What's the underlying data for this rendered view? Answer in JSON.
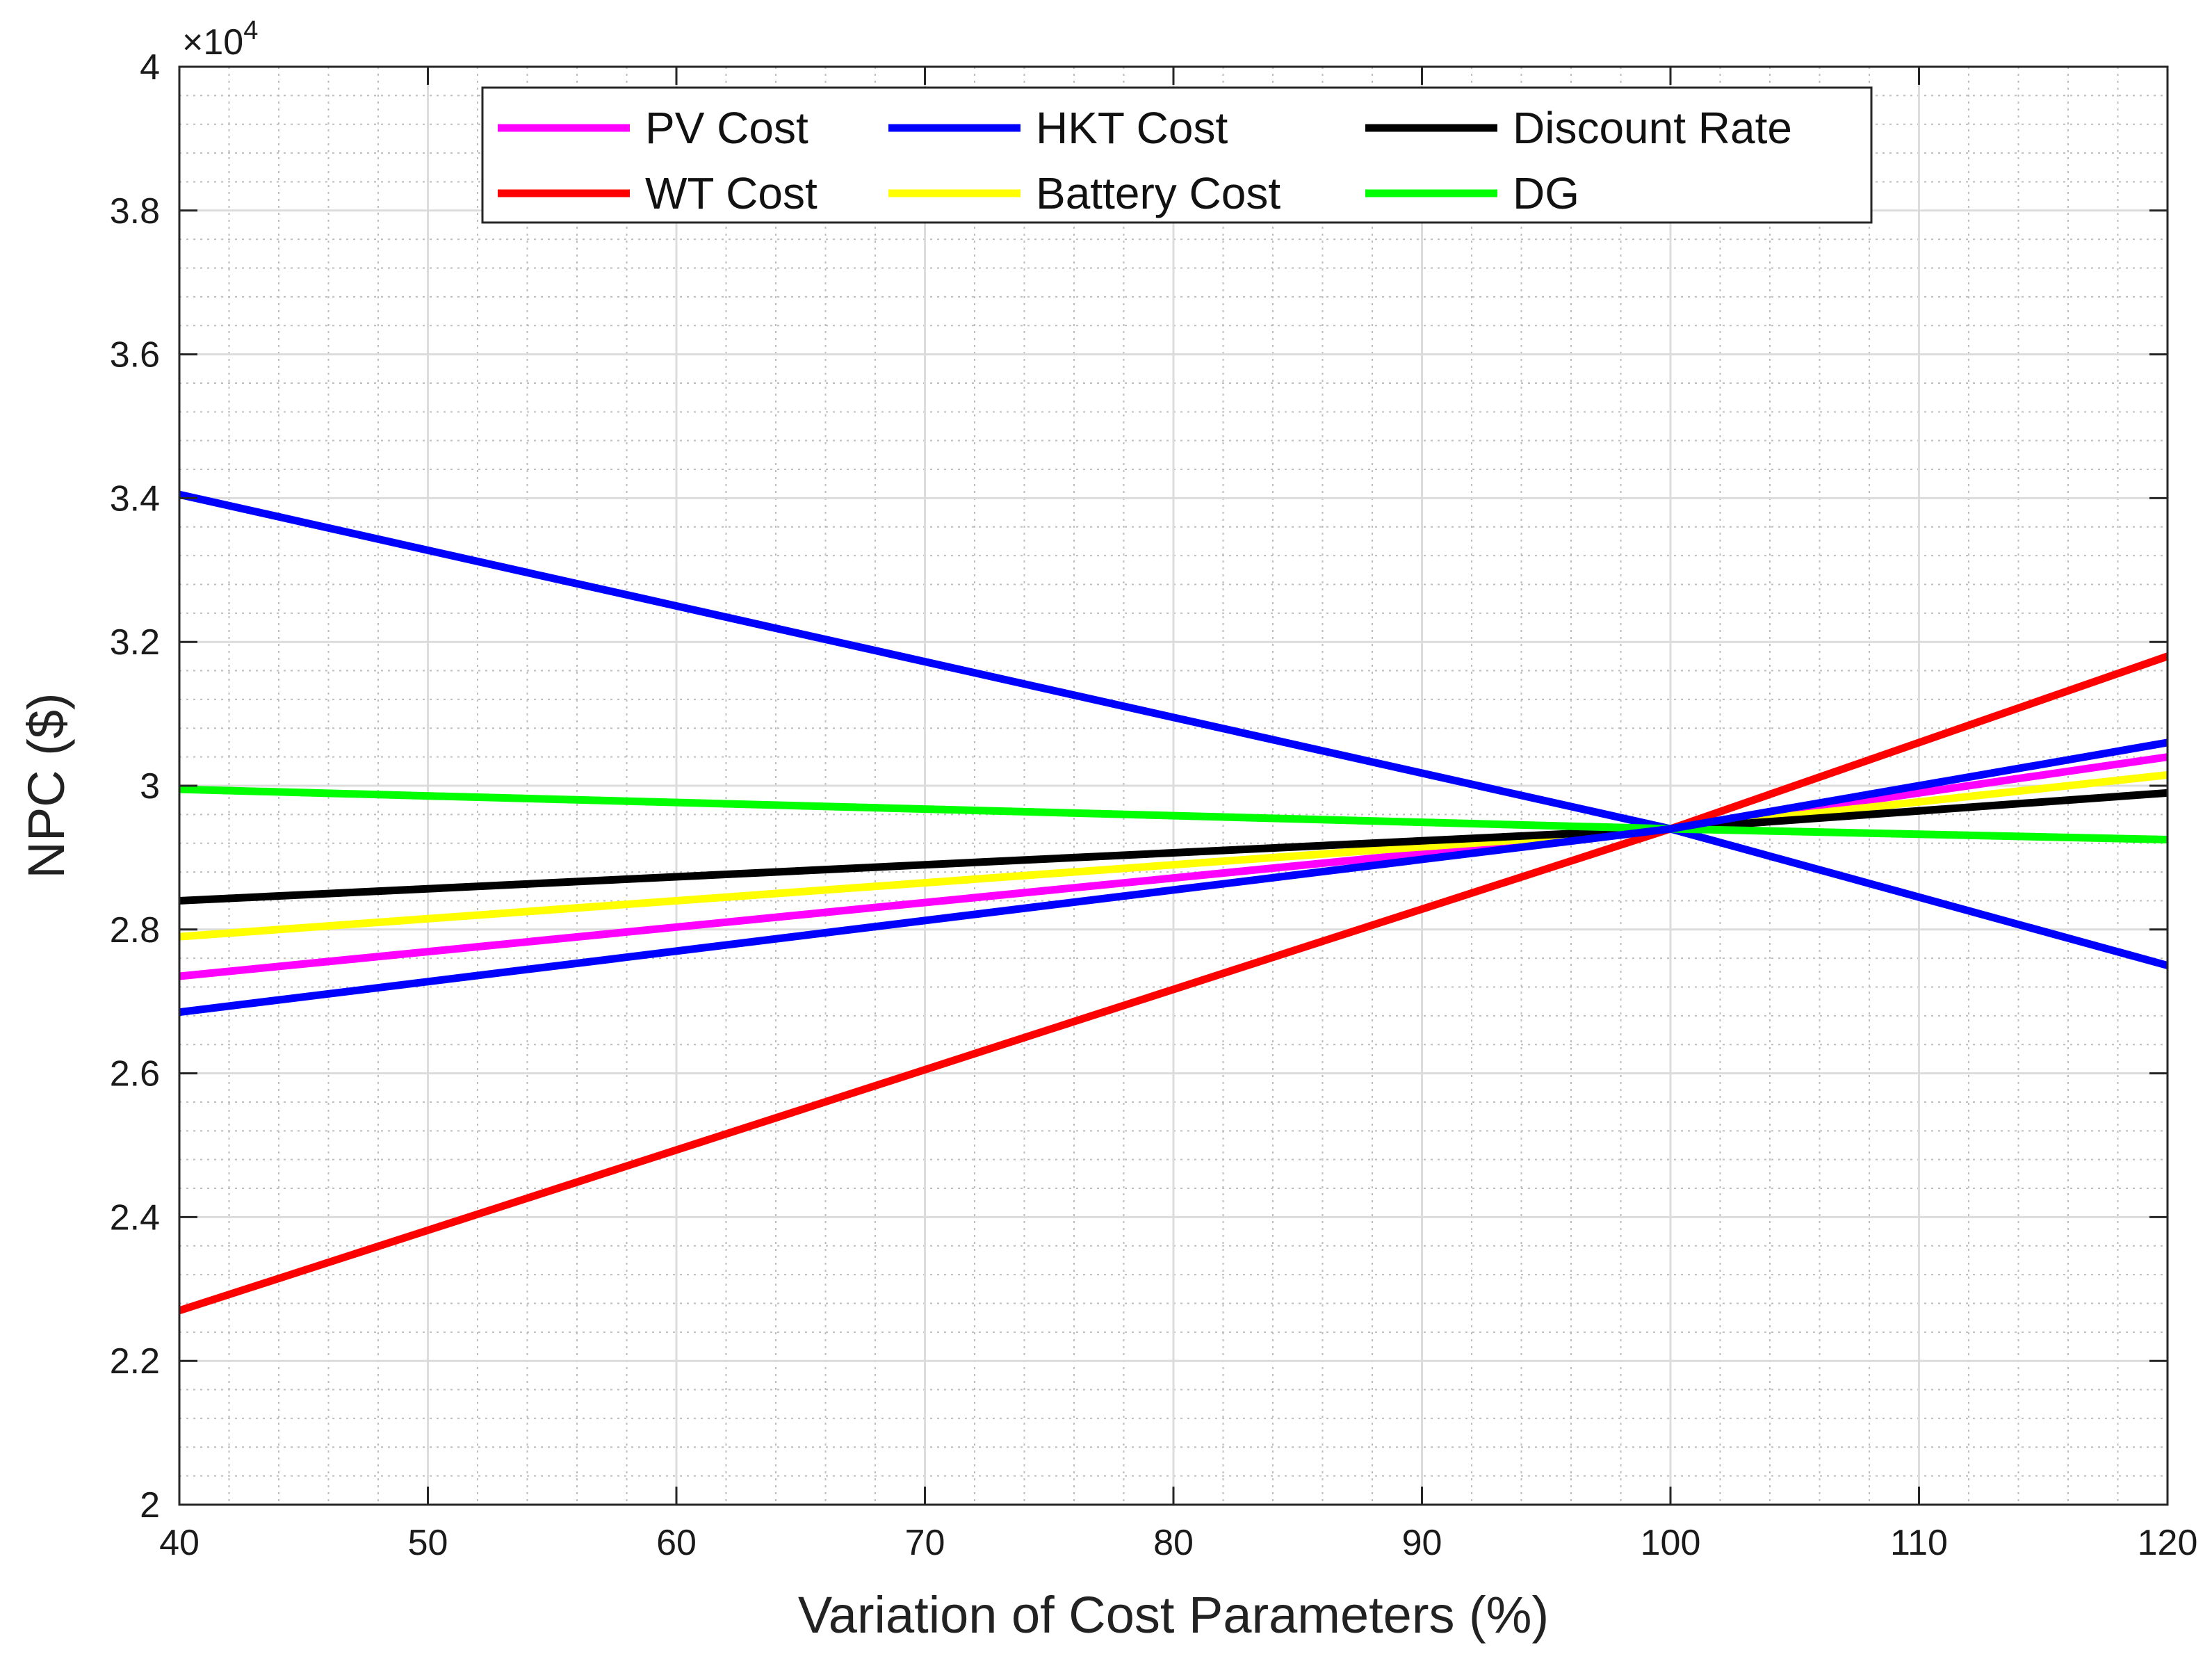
{
  "chart_data": {
    "type": "line",
    "title": "",
    "xlabel": "Variation of Cost Parameters (%)",
    "ylabel": "NPC ($)",
    "y_multiplier_label": "×10",
    "y_multiplier_exponent": "4",
    "xlim": [
      40,
      120
    ],
    "ylim": [
      2,
      4
    ],
    "xticks": [
      40,
      50,
      60,
      70,
      80,
      90,
      100,
      110,
      120
    ],
    "yticks": [
      2,
      2.2,
      2.4,
      2.6,
      2.8,
      3,
      3.2,
      3.4,
      3.6,
      3.8,
      4
    ],
    "xtick_labels": [
      "40",
      "50",
      "60",
      "70",
      "80",
      "90",
      "100",
      "110",
      "120"
    ],
    "ytick_labels": [
      "2",
      "2.2",
      "2.4",
      "2.6",
      "2.8",
      "3",
      "3.2",
      "3.4",
      "3.6",
      "3.8",
      "4"
    ],
    "grid": true,
    "minor_grid": true,
    "legend_position": "top-center",
    "legend_columns": 3,
    "series": [
      {
        "name": "PV Cost",
        "color": "#ff00ff",
        "x": [
          40,
          100,
          120
        ],
        "values": [
          2.735,
          2.94,
          3.04
        ]
      },
      {
        "name": "WT Cost",
        "color": "#ff0000",
        "x": [
          40,
          100,
          120
        ],
        "values": [
          2.27,
          2.94,
          3.18
        ]
      },
      {
        "name": "HKT Cost",
        "color": "#0000ff",
        "x": [
          40,
          100,
          120
        ],
        "values": [
          3.405,
          2.94,
          2.75
        ]
      },
      {
        "name": "Battery Cost",
        "color": "#ffff00",
        "x": [
          40,
          100,
          120
        ],
        "values": [
          2.79,
          2.94,
          3.015
        ]
      },
      {
        "name": "Discount Rate",
        "color": "#000000",
        "x": [
          40,
          100,
          120
        ],
        "values": [
          2.84,
          2.94,
          2.99
        ]
      },
      {
        "name": "DG",
        "color": "#00ff00",
        "x": [
          40,
          100,
          120
        ],
        "values": [
          2.995,
          2.94,
          2.925
        ]
      },
      {
        "name": "HKT Cost",
        "color": "#0000ff",
        "x": [
          40,
          100,
          120
        ],
        "values": [
          2.685,
          2.94,
          3.06
        ]
      }
    ]
  }
}
